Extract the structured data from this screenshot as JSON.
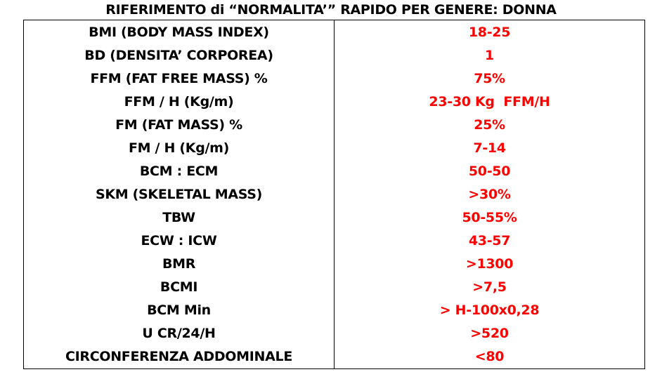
{
  "title": "RIFERIMENTO di “NORMALITA’” RAPIDO PER GENERE: DONNA",
  "colors": {
    "parameter_text": "#000000",
    "value_text": "#ff0000",
    "border": "#000000"
  },
  "rows": [
    {
      "parameter": "BMI (BODY MASS INDEX)",
      "value": "18-25"
    },
    {
      "parameter": "BD (DENSITA’ CORPOREA)",
      "value": "1"
    },
    {
      "parameter": "FFM (FAT FREE MASS) %",
      "value": "75%"
    },
    {
      "parameter": "FFM / H (Kg/m)",
      "value": "23-30 Kg  FFM/H"
    },
    {
      "parameter": "FM (FAT MASS) %",
      "value": "25%"
    },
    {
      "parameter": "FM / H (Kg/m)",
      "value": "7-14"
    },
    {
      "parameter": "BCM : ECM",
      "value": "50-50"
    },
    {
      "parameter": "SKM (SKELETAL MASS)",
      "value": ">30%"
    },
    {
      "parameter": "TBW",
      "value": "50-55%"
    },
    {
      "parameter": "ECW : ICW",
      "value": "43-57"
    },
    {
      "parameter": "BMR",
      "value": ">1300"
    },
    {
      "parameter": "BCMI",
      "value": ">7,5"
    },
    {
      "parameter": "BCM Min",
      "value": "> H-100x0,28"
    },
    {
      "parameter": "U CR/24/H",
      "value": ">520"
    },
    {
      "parameter": "CIRCONFERENZA ADDOMINALE",
      "value": "<80"
    }
  ]
}
